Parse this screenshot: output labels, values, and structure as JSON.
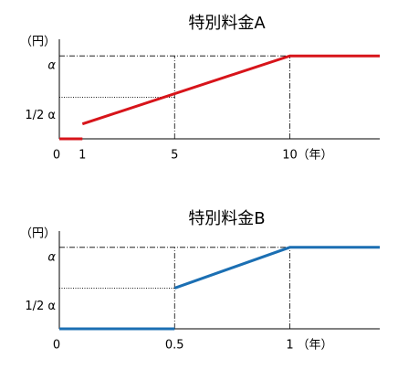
{
  "chart_data": [
    {
      "type": "line",
      "title": "特別料金A",
      "y_label": "（円）",
      "x_label": "（年）",
      "x": [
        0,
        1,
        1,
        1,
        10,
        13.9
      ],
      "values": [
        0,
        0,
        null,
        0.18,
        1,
        1
      ],
      "color": "#d7141a",
      "xlim": [
        0,
        13.9
      ],
      "ylim": [
        0,
        1.2
      ],
      "xticks": [
        0,
        1,
        5,
        10
      ],
      "yticks": [
        {
          "value": 0.5,
          "label": "1/2 α"
        },
        {
          "value": 1,
          "label": "α"
        }
      ]
    },
    {
      "type": "line",
      "title": "特別料金B",
      "y_label": "（円）",
      "x_label": "（年）",
      "x": [
        0,
        0.5,
        0.5,
        0.5,
        1,
        1.39
      ],
      "values": [
        0,
        0,
        null,
        0.5,
        1,
        1
      ],
      "color": "#1b6fb3",
      "xlim": [
        0,
        1.39
      ],
      "ylim": [
        0,
        1.2
      ],
      "xticks": [
        0,
        0.5,
        1
      ],
      "yticks": [
        {
          "value": 0.5,
          "label": "1/2 α"
        },
        {
          "value": 1,
          "label": "α"
        }
      ]
    }
  ]
}
